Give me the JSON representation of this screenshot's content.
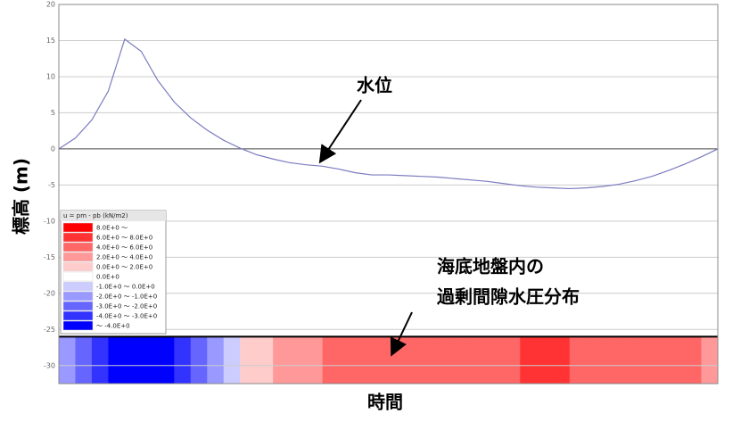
{
  "chart_data": {
    "type": "line",
    "y_label": "標高 (m)",
    "x_label": "時間",
    "ylim": [
      -32.5,
      20
    ],
    "yticks": [
      20,
      15,
      10,
      5,
      0,
      -5,
      -10,
      -15,
      -20,
      -25,
      -30
    ],
    "grid": true,
    "color": "#7b7bc0",
    "values": [
      0,
      1.5,
      4,
      8,
      15.2,
      13.5,
      9.5,
      6.5,
      4.3,
      2.6,
      1.2,
      0.1,
      -0.8,
      -1.4,
      -1.9,
      -2.2,
      -2.4,
      -2.8,
      -3.3,
      -3.6,
      -3.6,
      -3.7,
      -3.8,
      -3.9,
      -4.1,
      -4.3,
      -4.5,
      -4.8,
      -5.1,
      -5.3,
      -5.4,
      -5.5,
      -5.4,
      -5.2,
      -4.9,
      -4.4,
      -3.8,
      -3.0,
      -2.1,
      -1.1,
      0
    ],
    "band_top": -26,
    "band_classes": [
      7,
      8,
      9,
      10,
      10,
      10,
      10,
      9,
      8,
      7,
      6,
      4,
      4,
      3,
      3,
      3,
      2,
      2,
      2,
      2,
      2,
      2,
      2,
      2,
      2,
      2,
      2,
      2,
      1,
      1,
      1,
      2,
      2,
      2,
      2,
      2,
      2,
      2,
      2,
      3
    ],
    "legend": {
      "title": "u = pm - pb (kN/m2)",
      "entries": [
        {
          "label": "8.0E+0 ～",
          "color": "#ff0000"
        },
        {
          "label": "6.0E+0 ～ 8.0E+0",
          "color": "#ff3333"
        },
        {
          "label": "4.0E+0 ～ 6.0E+0",
          "color": "#ff6666"
        },
        {
          "label": "2.0E+0 ～ 4.0E+0",
          "color": "#ff9999"
        },
        {
          "label": "0.0E+0 ～ 2.0E+0",
          "color": "#ffcccc"
        },
        {
          "label": "0.0E+0",
          "color": "#ffffff"
        },
        {
          "label": "-1.0E+0 ～ 0.0E+0",
          "color": "#ccccff"
        },
        {
          "label": "-2.0E+0 ～ -1.0E+0",
          "color": "#9999ff"
        },
        {
          "label": "-3.0E+0 ～ -2.0E+0",
          "color": "#6666ff"
        },
        {
          "label": "-4.0E+0 ～ -3.0E+0",
          "color": "#3333ff"
        },
        {
          "label": "～ -4.0E+0",
          "color": "#0000ff"
        }
      ]
    },
    "annotations": [
      "水位",
      "海底地盤内の",
      "過剰間隙水圧分布"
    ]
  }
}
